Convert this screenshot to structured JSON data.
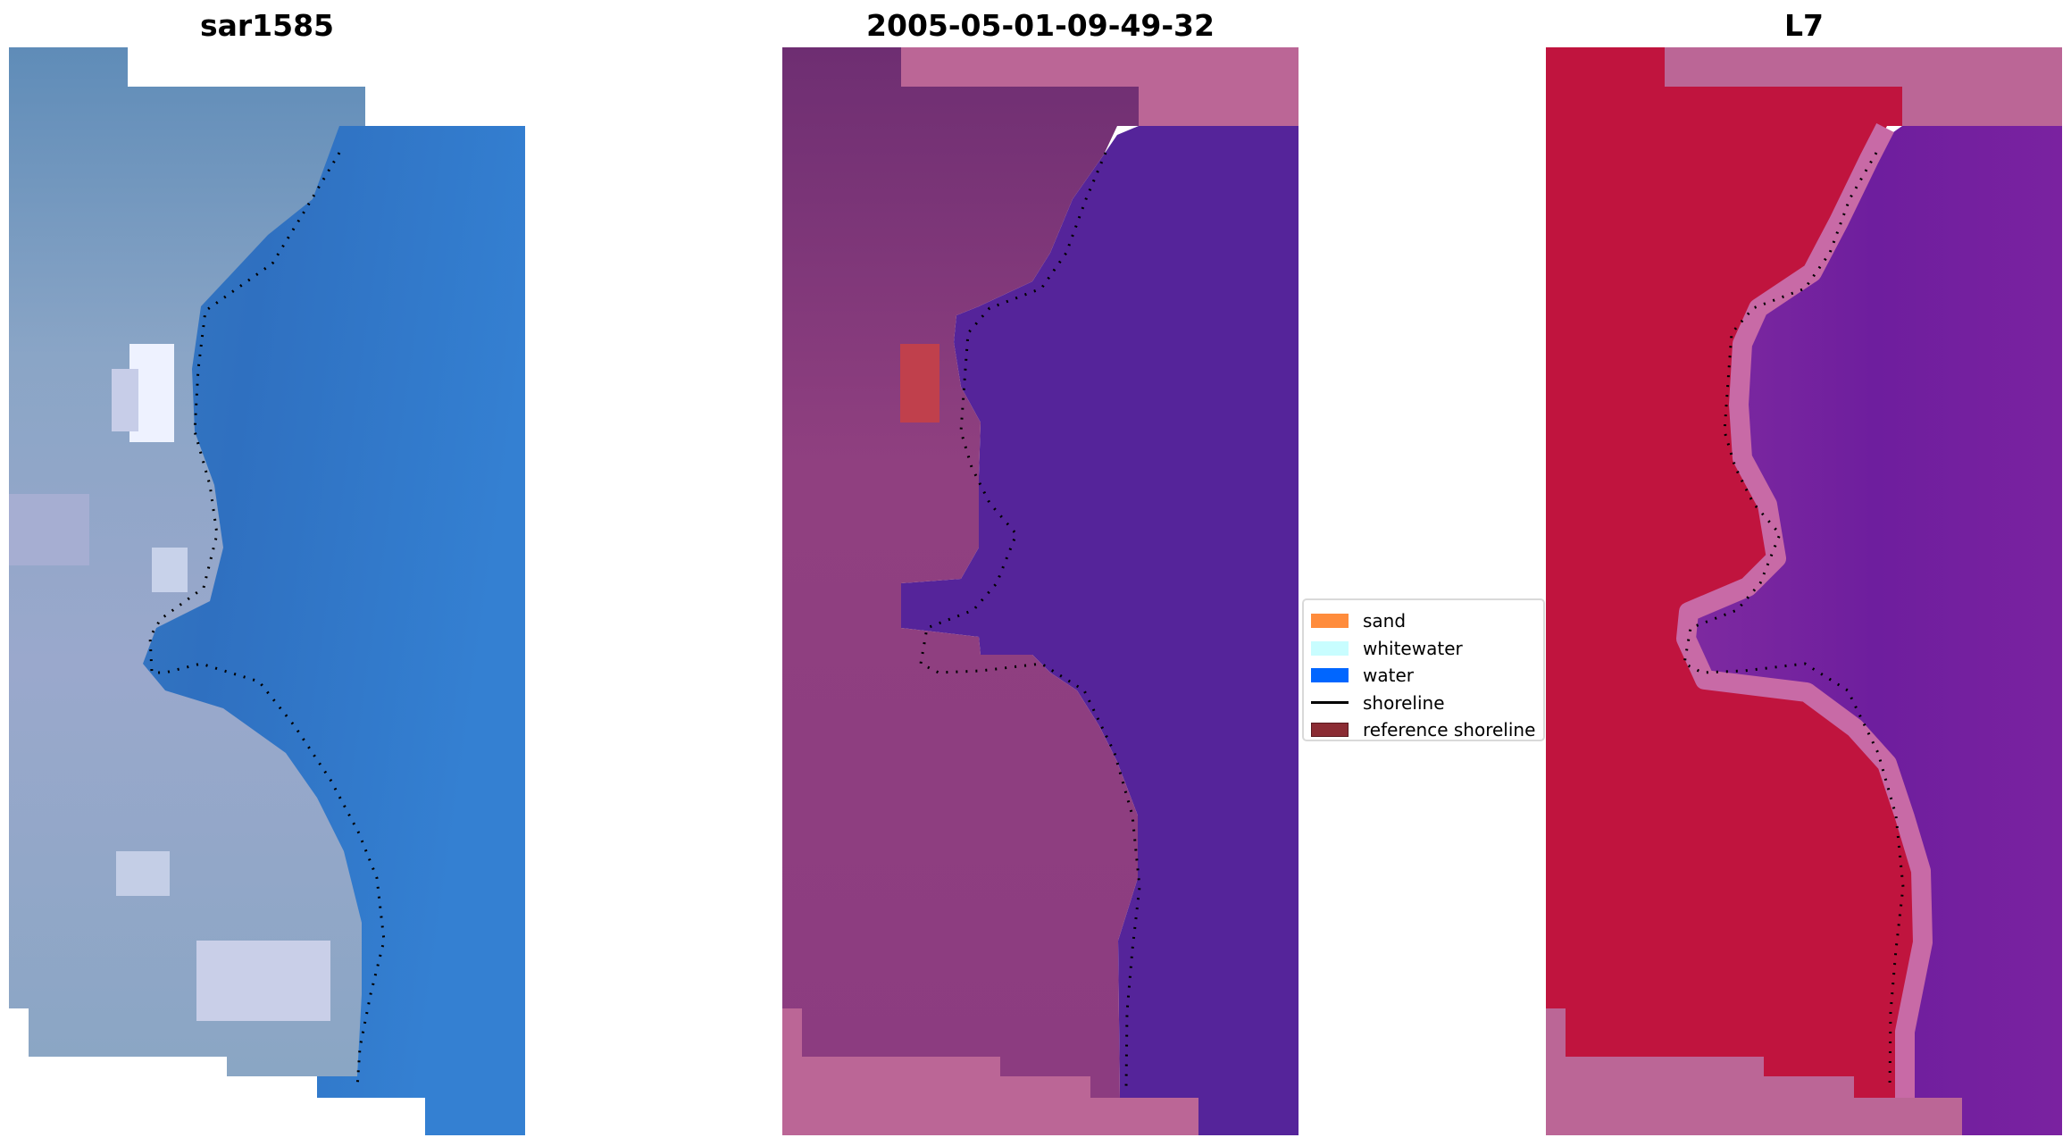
{
  "panels": [
    {
      "title": "sar1585"
    },
    {
      "title": "2005-05-01-09-49-32"
    },
    {
      "title": "L7"
    }
  ],
  "legend": {
    "items": [
      {
        "label": "sand",
        "color": "#ff8c3c",
        "kind": "patch"
      },
      {
        "label": "whitewater",
        "color": "#c8fdff",
        "kind": "patch"
      },
      {
        "label": "water",
        "color": "#0066ff",
        "kind": "patch"
      },
      {
        "label": "shoreline",
        "color": "#000000",
        "kind": "line"
      },
      {
        "label": "reference shoreline",
        "color": "#8b2c34",
        "kind": "patch"
      }
    ]
  },
  "colors": {
    "rgb_land": "#8aa0c0",
    "rgb_water": "#2f72c4",
    "class_land": "#8c3a80",
    "class_water": "#55249a",
    "class_nodata": "#bb6696",
    "class_reference": "#c0404c",
    "mndwi_land": "#c0143e",
    "mndwi_water": "#7a1f98",
    "mndwi_nodata": "#bb6696"
  }
}
